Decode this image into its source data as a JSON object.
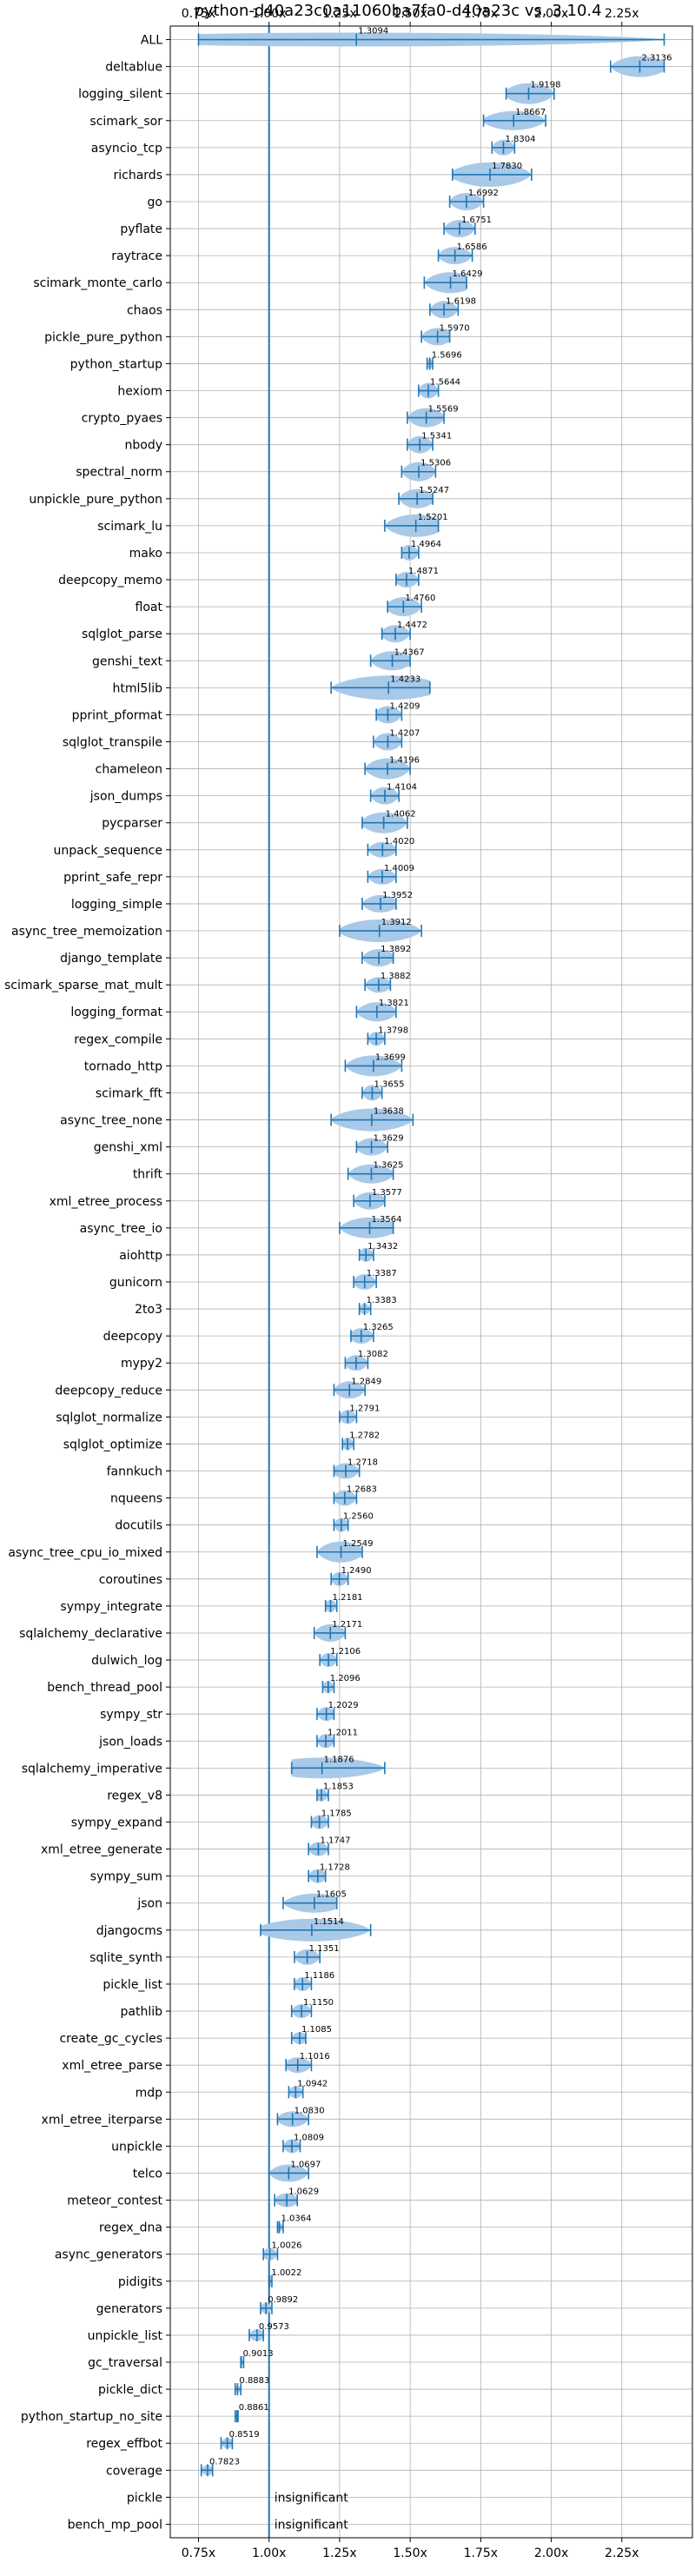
{
  "chart_data": {
    "type": "violin",
    "title": "python-d40a23c0a11060ba7fa0-d40a23c vs. 3.10.4",
    "xlim": [
      0.65,
      2.5
    ],
    "x_ticks": [
      {
        "v": 0.75,
        "label": "0.75x"
      },
      {
        "v": 1.0,
        "label": "1.00x"
      },
      {
        "v": 1.25,
        "label": "1.25x"
      },
      {
        "v": 1.5,
        "label": "1.50x"
      },
      {
        "v": 1.75,
        "label": "1.75x"
      },
      {
        "v": 2.0,
        "label": "2.00x"
      },
      {
        "v": 2.25,
        "label": "2.25x"
      }
    ],
    "reference_line": 1.0,
    "grid": true,
    "insignificant_label": "insignificant",
    "benchmarks": [
      {
        "name": "ALL",
        "mean": 1.3094,
        "lo": 0.75,
        "hi": 2.4,
        "w": 8,
        "label": "1.3094"
      },
      {
        "name": "deltablue",
        "mean": 2.3136,
        "lo": 2.21,
        "hi": 2.4,
        "w": 12,
        "label": "2.3136"
      },
      {
        "name": "logging_silent",
        "mean": 1.9198,
        "lo": 1.84,
        "hi": 2.01,
        "w": 12,
        "label": "1.9198"
      },
      {
        "name": "scimark_sor",
        "mean": 1.8667,
        "lo": 1.76,
        "hi": 1.98,
        "w": 11,
        "label": "1.8667"
      },
      {
        "name": "asyncio_tcp",
        "mean": 1.8304,
        "lo": 1.79,
        "hi": 1.87,
        "w": 9,
        "label": "1.8304"
      },
      {
        "name": "richards",
        "mean": 1.783,
        "lo": 1.65,
        "hi": 1.93,
        "w": 14,
        "label": "1.7830"
      },
      {
        "name": "go",
        "mean": 1.6992,
        "lo": 1.64,
        "hi": 1.76,
        "w": 10,
        "label": "1.6992"
      },
      {
        "name": "pyflate",
        "mean": 1.6751,
        "lo": 1.62,
        "hi": 1.73,
        "w": 10,
        "label": "1.6751"
      },
      {
        "name": "raytrace",
        "mean": 1.6586,
        "lo": 1.6,
        "hi": 1.72,
        "w": 10,
        "label": "1.6586"
      },
      {
        "name": "scimark_monte_carlo",
        "mean": 1.6429,
        "lo": 1.55,
        "hi": 1.7,
        "w": 12,
        "label": "1.6429"
      },
      {
        "name": "chaos",
        "mean": 1.6198,
        "lo": 1.57,
        "hi": 1.67,
        "w": 10,
        "label": "1.6198"
      },
      {
        "name": "pickle_pure_python",
        "mean": 1.597,
        "lo": 1.54,
        "hi": 1.64,
        "w": 10,
        "label": "1.5970"
      },
      {
        "name": "python_startup",
        "mean": 1.5696,
        "lo": 1.56,
        "hi": 1.58,
        "w": 6,
        "label": "1.5696"
      },
      {
        "name": "hexiom",
        "mean": 1.5644,
        "lo": 1.53,
        "hi": 1.6,
        "w": 9,
        "label": "1.5644"
      },
      {
        "name": "crypto_pyaes",
        "mean": 1.5569,
        "lo": 1.49,
        "hi": 1.62,
        "w": 11,
        "label": "1.5569"
      },
      {
        "name": "nbody",
        "mean": 1.5341,
        "lo": 1.49,
        "hi": 1.58,
        "w": 10,
        "label": "1.5341"
      },
      {
        "name": "spectral_norm",
        "mean": 1.5306,
        "lo": 1.47,
        "hi": 1.59,
        "w": 11,
        "label": "1.5306"
      },
      {
        "name": "unpickle_pure_python",
        "mean": 1.5247,
        "lo": 1.46,
        "hi": 1.58,
        "w": 11,
        "label": "1.5247"
      },
      {
        "name": "scimark_lu",
        "mean": 1.5201,
        "lo": 1.41,
        "hi": 1.6,
        "w": 13,
        "label": "1.5201"
      },
      {
        "name": "mako",
        "mean": 1.4964,
        "lo": 1.47,
        "hi": 1.53,
        "w": 9,
        "label": "1.4964"
      },
      {
        "name": "deepcopy_memo",
        "mean": 1.4871,
        "lo": 1.45,
        "hi": 1.53,
        "w": 9,
        "label": "1.4871"
      },
      {
        "name": "float",
        "mean": 1.476,
        "lo": 1.42,
        "hi": 1.54,
        "w": 11,
        "label": "1.4760"
      },
      {
        "name": "sqlglot_parse",
        "mean": 1.4472,
        "lo": 1.4,
        "hi": 1.5,
        "w": 10,
        "label": "1.4472"
      },
      {
        "name": "genshi_text",
        "mean": 1.4367,
        "lo": 1.36,
        "hi": 1.5,
        "w": 11,
        "label": "1.4367"
      },
      {
        "name": "html5lib",
        "mean": 1.4233,
        "lo": 1.22,
        "hi": 1.57,
        "w": 14,
        "label": "1.4233"
      },
      {
        "name": "pprint_pformat",
        "mean": 1.4209,
        "lo": 1.38,
        "hi": 1.47,
        "w": 10,
        "label": "1.4209"
      },
      {
        "name": "sqlglot_transpile",
        "mean": 1.4207,
        "lo": 1.37,
        "hi": 1.47,
        "w": 10,
        "label": "1.4207"
      },
      {
        "name": "chameleon",
        "mean": 1.4196,
        "lo": 1.34,
        "hi": 1.5,
        "w": 12,
        "label": "1.4196"
      },
      {
        "name": "json_dumps",
        "mean": 1.4104,
        "lo": 1.36,
        "hi": 1.46,
        "w": 10,
        "label": "1.4104"
      },
      {
        "name": "pycparser",
        "mean": 1.4062,
        "lo": 1.33,
        "hi": 1.49,
        "w": 12,
        "label": "1.4062"
      },
      {
        "name": "unpack_sequence",
        "mean": 1.402,
        "lo": 1.35,
        "hi": 1.45,
        "w": 9,
        "label": "1.4020"
      },
      {
        "name": "pprint_safe_repr",
        "mean": 1.4009,
        "lo": 1.35,
        "hi": 1.45,
        "w": 9,
        "label": "1.4009"
      },
      {
        "name": "logging_simple",
        "mean": 1.3952,
        "lo": 1.33,
        "hi": 1.45,
        "w": 10,
        "label": "1.3952"
      },
      {
        "name": "async_tree_memoization",
        "mean": 1.3912,
        "lo": 1.25,
        "hi": 1.54,
        "w": 13,
        "label": "1.3912"
      },
      {
        "name": "django_template",
        "mean": 1.3892,
        "lo": 1.33,
        "hi": 1.44,
        "w": 10,
        "label": "1.3892"
      },
      {
        "name": "scimark_sparse_mat_mult",
        "mean": 1.3882,
        "lo": 1.34,
        "hi": 1.43,
        "w": 9,
        "label": "1.3882"
      },
      {
        "name": "logging_format",
        "mean": 1.3821,
        "lo": 1.31,
        "hi": 1.45,
        "w": 11,
        "label": "1.3821"
      },
      {
        "name": "regex_compile",
        "mean": 1.3798,
        "lo": 1.35,
        "hi": 1.41,
        "w": 8,
        "label": "1.3798"
      },
      {
        "name": "tornado_http",
        "mean": 1.3699,
        "lo": 1.27,
        "hi": 1.47,
        "w": 12,
        "label": "1.3699"
      },
      {
        "name": "scimark_fft",
        "mean": 1.3655,
        "lo": 1.33,
        "hi": 1.4,
        "w": 9,
        "label": "1.3655"
      },
      {
        "name": "async_tree_none",
        "mean": 1.3638,
        "lo": 1.22,
        "hi": 1.51,
        "w": 13,
        "label": "1.3638"
      },
      {
        "name": "genshi_xml",
        "mean": 1.3629,
        "lo": 1.31,
        "hi": 1.42,
        "w": 10,
        "label": "1.3629"
      },
      {
        "name": "thrift",
        "mean": 1.3625,
        "lo": 1.28,
        "hi": 1.44,
        "w": 11,
        "label": "1.3625"
      },
      {
        "name": "xml_etree_process",
        "mean": 1.3577,
        "lo": 1.3,
        "hi": 1.41,
        "w": 10,
        "label": "1.3577"
      },
      {
        "name": "async_tree_io",
        "mean": 1.3564,
        "lo": 1.25,
        "hi": 1.44,
        "w": 12,
        "label": "1.3564"
      },
      {
        "name": "aiohttp",
        "mean": 1.3432,
        "lo": 1.32,
        "hi": 1.37,
        "w": 8,
        "label": "1.3432"
      },
      {
        "name": "gunicorn",
        "mean": 1.3387,
        "lo": 1.3,
        "hi": 1.38,
        "w": 9,
        "label": "1.3387"
      },
      {
        "name": "2to3",
        "mean": 1.3383,
        "lo": 1.32,
        "hi": 1.36,
        "w": 6,
        "label": "1.3383"
      },
      {
        "name": "deepcopy",
        "mean": 1.3265,
        "lo": 1.29,
        "hi": 1.37,
        "w": 9,
        "label": "1.3265"
      },
      {
        "name": "mypy2",
        "mean": 1.3082,
        "lo": 1.27,
        "hi": 1.35,
        "w": 9,
        "label": "1.3082"
      },
      {
        "name": "deepcopy_reduce",
        "mean": 1.2849,
        "lo": 1.23,
        "hi": 1.34,
        "w": 10,
        "label": "1.2849"
      },
      {
        "name": "sqlglot_normalize",
        "mean": 1.2791,
        "lo": 1.25,
        "hi": 1.31,
        "w": 8,
        "label": "1.2791"
      },
      {
        "name": "sqlglot_optimize",
        "mean": 1.2782,
        "lo": 1.26,
        "hi": 1.3,
        "w": 7,
        "label": "1.2782"
      },
      {
        "name": "fannkuch",
        "mean": 1.2718,
        "lo": 1.23,
        "hi": 1.32,
        "w": 9,
        "label": "1.2718"
      },
      {
        "name": "nqueens",
        "mean": 1.2683,
        "lo": 1.23,
        "hi": 1.31,
        "w": 9,
        "label": "1.2683"
      },
      {
        "name": "docutils",
        "mean": 1.256,
        "lo": 1.23,
        "hi": 1.28,
        "w": 8,
        "label": "1.2560"
      },
      {
        "name": "async_tree_cpu_io_mixed",
        "mean": 1.2549,
        "lo": 1.17,
        "hi": 1.33,
        "w": 12,
        "label": "1.2549"
      },
      {
        "name": "coroutines",
        "mean": 1.249,
        "lo": 1.22,
        "hi": 1.28,
        "w": 8,
        "label": "1.2490"
      },
      {
        "name": "sympy_integrate",
        "mean": 1.2181,
        "lo": 1.2,
        "hi": 1.24,
        "w": 7,
        "label": "1.2181"
      },
      {
        "name": "sqlalchemy_declarative",
        "mean": 1.2171,
        "lo": 1.16,
        "hi": 1.27,
        "w": 10,
        "label": "1.2171"
      },
      {
        "name": "dulwich_log",
        "mean": 1.2106,
        "lo": 1.18,
        "hi": 1.24,
        "w": 8,
        "label": "1.2106"
      },
      {
        "name": "bench_thread_pool",
        "mean": 1.2096,
        "lo": 1.19,
        "hi": 1.23,
        "w": 7,
        "label": "1.2096"
      },
      {
        "name": "sympy_str",
        "mean": 1.2029,
        "lo": 1.17,
        "hi": 1.23,
        "w": 8,
        "label": "1.2029"
      },
      {
        "name": "json_loads",
        "mean": 1.2011,
        "lo": 1.17,
        "hi": 1.23,
        "w": 8,
        "label": "1.2011"
      },
      {
        "name": "sqlalchemy_imperative",
        "mean": 1.1876,
        "lo": 1.08,
        "hi": 1.41,
        "w": 12,
        "label": "1.1876"
      },
      {
        "name": "regex_v8",
        "mean": 1.1853,
        "lo": 1.17,
        "hi": 1.21,
        "w": 7,
        "label": "1.1853"
      },
      {
        "name": "sympy_expand",
        "mean": 1.1785,
        "lo": 1.15,
        "hi": 1.21,
        "w": 8,
        "label": "1.1785"
      },
      {
        "name": "xml_etree_generate",
        "mean": 1.1747,
        "lo": 1.14,
        "hi": 1.21,
        "w": 8,
        "label": "1.1747"
      },
      {
        "name": "sympy_sum",
        "mean": 1.1728,
        "lo": 1.14,
        "hi": 1.2,
        "w": 8,
        "label": "1.1728"
      },
      {
        "name": "json",
        "mean": 1.1605,
        "lo": 1.05,
        "hi": 1.24,
        "w": 11,
        "label": "1.1605"
      },
      {
        "name": "djangocms",
        "mean": 1.1514,
        "lo": 0.97,
        "hi": 1.36,
        "w": 13,
        "label": "1.1514"
      },
      {
        "name": "sqlite_synth",
        "mean": 1.1351,
        "lo": 1.09,
        "hi": 1.18,
        "w": 9,
        "label": "1.1351"
      },
      {
        "name": "pickle_list",
        "mean": 1.1186,
        "lo": 1.09,
        "hi": 1.15,
        "w": 8,
        "label": "1.1186"
      },
      {
        "name": "pathlib",
        "mean": 1.115,
        "lo": 1.08,
        "hi": 1.15,
        "w": 8,
        "label": "1.1150"
      },
      {
        "name": "create_gc_cycles",
        "mean": 1.1085,
        "lo": 1.08,
        "hi": 1.13,
        "w": 7,
        "label": "1.1085"
      },
      {
        "name": "xml_etree_parse",
        "mean": 1.1016,
        "lo": 1.06,
        "hi": 1.15,
        "w": 9,
        "label": "1.1016"
      },
      {
        "name": "mdp",
        "mean": 1.0942,
        "lo": 1.07,
        "hi": 1.12,
        "w": 7,
        "label": "1.0942"
      },
      {
        "name": "xml_etree_iterparse",
        "mean": 1.083,
        "lo": 1.03,
        "hi": 1.14,
        "w": 9,
        "label": "1.0830"
      },
      {
        "name": "unpickle",
        "mean": 1.0809,
        "lo": 1.05,
        "hi": 1.11,
        "w": 8,
        "label": "1.0809"
      },
      {
        "name": "telco",
        "mean": 1.0697,
        "lo": 1.0,
        "hi": 1.14,
        "w": 10,
        "label": "1.0697"
      },
      {
        "name": "meteor_contest",
        "mean": 1.0629,
        "lo": 1.02,
        "hi": 1.1,
        "w": 8,
        "label": "1.0629"
      },
      {
        "name": "regex_dna",
        "mean": 1.0364,
        "lo": 1.03,
        "hi": 1.05,
        "w": 5,
        "label": "1.0364"
      },
      {
        "name": "async_generators",
        "mean": 1.0026,
        "lo": 0.98,
        "hi": 1.03,
        "w": 7,
        "label": "1.0026"
      },
      {
        "name": "pidigits",
        "mean": 1.0022,
        "lo": 1.0,
        "hi": 1.01,
        "w": 3,
        "label": "1.0022"
      },
      {
        "name": "generators",
        "mean": 0.9892,
        "lo": 0.97,
        "hi": 1.01,
        "w": 6,
        "label": "0.9892"
      },
      {
        "name": "unpickle_list",
        "mean": 0.9573,
        "lo": 0.93,
        "hi": 0.98,
        "w": 7,
        "label": "0.9573"
      },
      {
        "name": "gc_traversal",
        "mean": 0.9013,
        "lo": 0.9,
        "hi": 0.91,
        "w": 4,
        "label": "0.9013"
      },
      {
        "name": "pickle_dict",
        "mean": 0.8883,
        "lo": 0.88,
        "hi": 0.9,
        "w": 4,
        "label": "0.8883"
      },
      {
        "name": "python_startup_no_site",
        "mean": 0.8861,
        "lo": 0.88,
        "hi": 0.89,
        "w": 3,
        "label": "0.8861"
      },
      {
        "name": "regex_effbot",
        "mean": 0.8519,
        "lo": 0.83,
        "hi": 0.87,
        "w": 6,
        "label": "0.8519"
      },
      {
        "name": "coverage",
        "mean": 0.7823,
        "lo": 0.76,
        "hi": 0.8,
        "w": 6,
        "label": "0.7823"
      },
      {
        "name": "pickle",
        "insignificant": true
      },
      {
        "name": "bench_mp_pool",
        "insignificant": true
      }
    ]
  },
  "colors": {
    "violin": "#a9c9e8",
    "bar": "#1f77b4",
    "ref_line": "#1f77b4",
    "grid": "#b0b0b0",
    "axis": "#000000"
  }
}
